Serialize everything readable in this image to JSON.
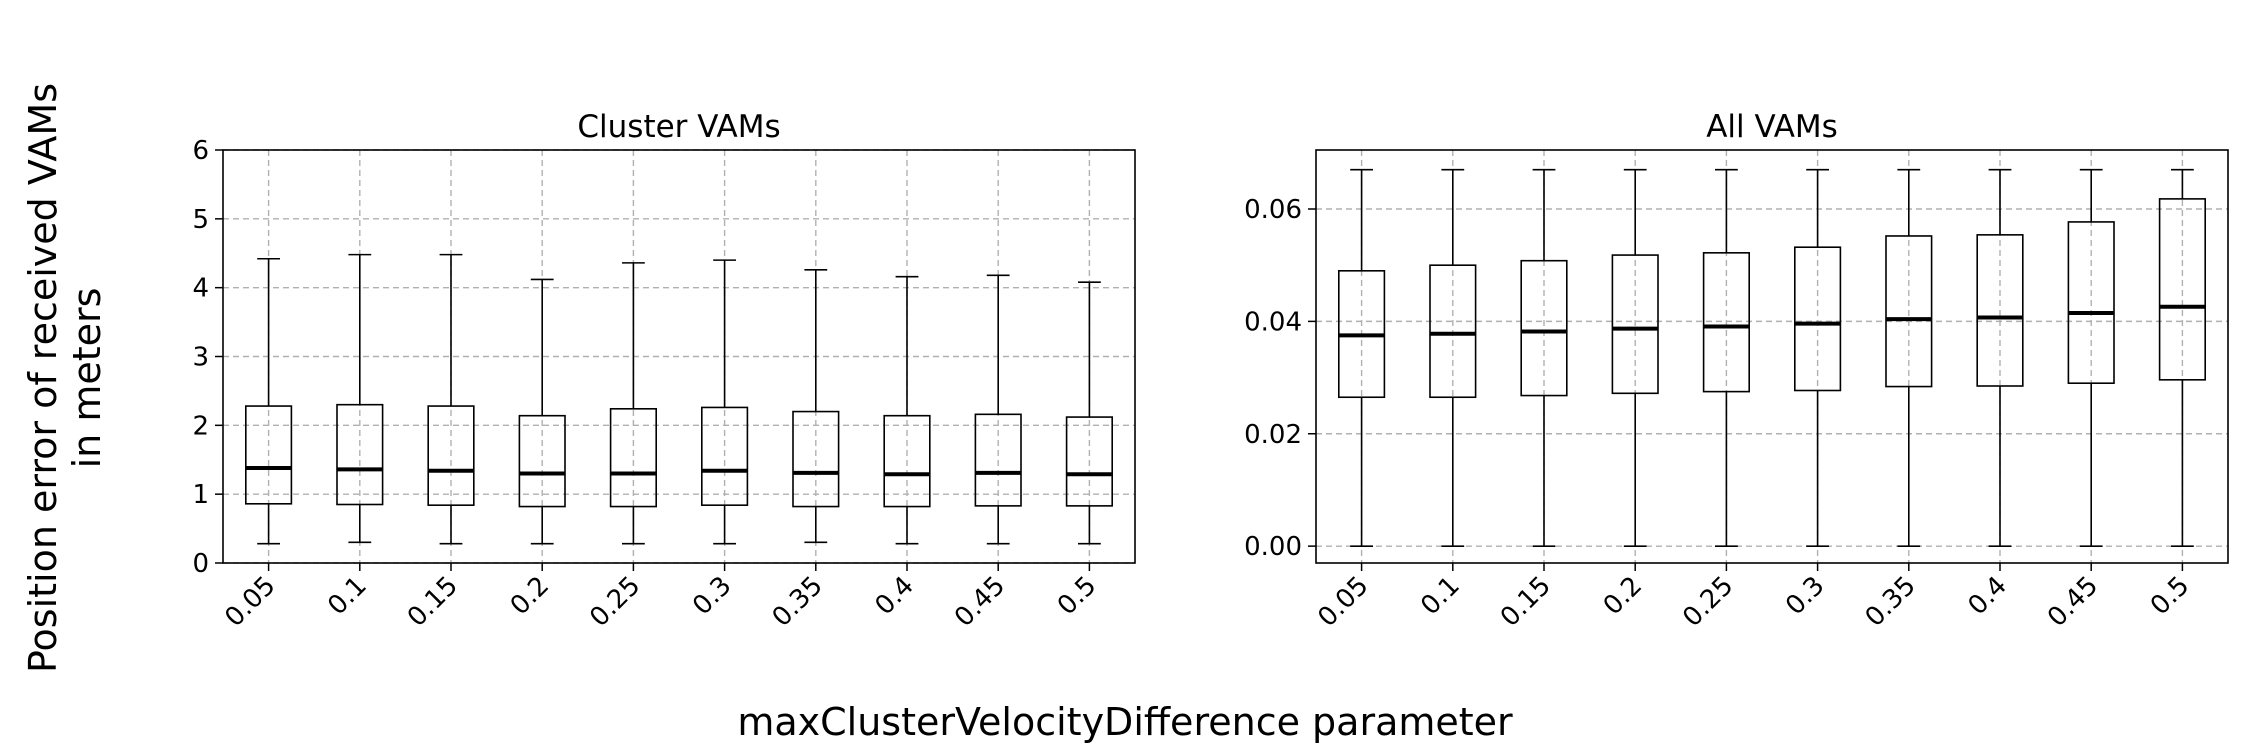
{
  "figure": {
    "ylabel_line1": "Position error of received VAMs",
    "ylabel_line2": "in meters",
    "xlabel": "maxClusterVelocityDifference parameter"
  },
  "chart_data": [
    {
      "type": "box",
      "title": "Cluster VAMs",
      "categories": [
        "0.05",
        "0.1",
        "0.15",
        "0.2",
        "0.25",
        "0.3",
        "0.35",
        "0.4",
        "0.45",
        "0.5"
      ],
      "ylim": [
        0,
        6
      ],
      "yticks": [
        "0",
        "1",
        "2",
        "3",
        "4",
        "5",
        "6"
      ],
      "grid": true,
      "boxes": [
        {
          "whislo": 0.28,
          "q1": 0.86,
          "med": 1.38,
          "q3": 2.28,
          "whishi": 4.42
        },
        {
          "whislo": 0.3,
          "q1": 0.85,
          "med": 1.36,
          "q3": 2.3,
          "whishi": 4.48
        },
        {
          "whislo": 0.28,
          "q1": 0.84,
          "med": 1.34,
          "q3": 2.28,
          "whishi": 4.48
        },
        {
          "whislo": 0.28,
          "q1": 0.82,
          "med": 1.3,
          "q3": 2.14,
          "whishi": 4.12
        },
        {
          "whislo": 0.28,
          "q1": 0.82,
          "med": 1.3,
          "q3": 2.24,
          "whishi": 4.36
        },
        {
          "whislo": 0.28,
          "q1": 0.84,
          "med": 1.34,
          "q3": 2.26,
          "whishi": 4.4
        },
        {
          "whislo": 0.3,
          "q1": 0.82,
          "med": 1.31,
          "q3": 2.2,
          "whishi": 4.26
        },
        {
          "whislo": 0.28,
          "q1": 0.82,
          "med": 1.29,
          "q3": 2.14,
          "whishi": 4.16
        },
        {
          "whislo": 0.28,
          "q1": 0.83,
          "med": 1.31,
          "q3": 2.16,
          "whishi": 4.18
        },
        {
          "whislo": 0.28,
          "q1": 0.83,
          "med": 1.29,
          "q3": 2.12,
          "whishi": 4.08
        }
      ]
    },
    {
      "type": "box",
      "title": "All VAMs",
      "categories": [
        "0.05",
        "0.1",
        "0.15",
        "0.2",
        "0.25",
        "0.3",
        "0.35",
        "0.4",
        "0.45",
        "0.5"
      ],
      "ylim": [
        -0.003,
        0.0705
      ],
      "yticks": [
        "0.00",
        "0.02",
        "0.04",
        "0.06"
      ],
      "grid": true,
      "boxes": [
        {
          "whislo": 0.0,
          "q1": 0.0265,
          "med": 0.0375,
          "q3": 0.049,
          "whishi": 0.067
        },
        {
          "whislo": 0.0,
          "q1": 0.0265,
          "med": 0.0378,
          "q3": 0.05,
          "whishi": 0.067
        },
        {
          "whislo": 0.0,
          "q1": 0.0268,
          "med": 0.0382,
          "q3": 0.0508,
          "whishi": 0.067
        },
        {
          "whislo": 0.0,
          "q1": 0.0272,
          "med": 0.0387,
          "q3": 0.0518,
          "whishi": 0.067
        },
        {
          "whislo": 0.0,
          "q1": 0.0275,
          "med": 0.0391,
          "q3": 0.0522,
          "whishi": 0.067
        },
        {
          "whislo": 0.0,
          "q1": 0.0277,
          "med": 0.0396,
          "q3": 0.0532,
          "whishi": 0.067
        },
        {
          "whislo": 0.0,
          "q1": 0.0284,
          "med": 0.0404,
          "q3": 0.0552,
          "whishi": 0.067
        },
        {
          "whislo": 0.0,
          "q1": 0.0285,
          "med": 0.0407,
          "q3": 0.0554,
          "whishi": 0.067
        },
        {
          "whislo": 0.0,
          "q1": 0.029,
          "med": 0.0415,
          "q3": 0.0577,
          "whishi": 0.067
        },
        {
          "whislo": 0.0,
          "q1": 0.0296,
          "med": 0.0426,
          "q3": 0.0618,
          "whishi": 0.067
        }
      ]
    }
  ]
}
